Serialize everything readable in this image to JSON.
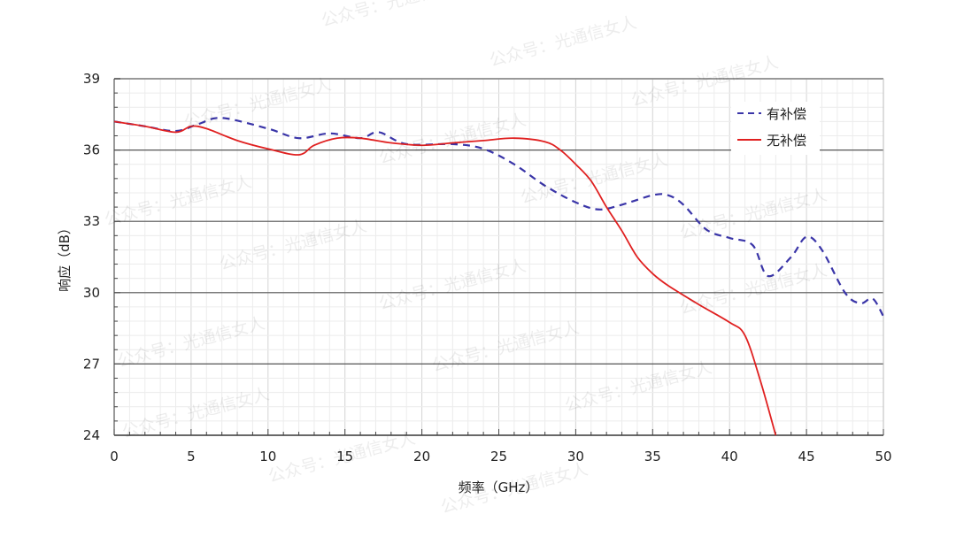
{
  "chart_data": {
    "type": "line",
    "title": "",
    "xlabel": "频率（GHz）",
    "ylabel": "响应（dB）",
    "xlim": [
      0,
      50
    ],
    "ylim": [
      24,
      39
    ],
    "xticks": [
      0,
      5,
      10,
      15,
      20,
      25,
      30,
      35,
      40,
      45,
      50
    ],
    "yticks": [
      24,
      27,
      30,
      33,
      36,
      39
    ],
    "grid": true,
    "legend_position": "top-right",
    "series": [
      {
        "name": "有补偿",
        "color": "#3a35a8",
        "style": "dashed",
        "x": [
          0,
          2,
          4,
          5.5,
          7,
          10,
          12,
          14,
          16,
          17.2,
          19,
          22,
          24,
          26,
          28,
          30,
          31.5,
          33,
          35,
          36,
          37,
          38.5,
          40,
          41.5,
          42.5,
          44,
          45,
          46,
          47.5,
          48.5,
          49.3,
          50
        ],
        "y": [
          37.2,
          37.0,
          36.8,
          37.1,
          37.35,
          36.9,
          36.5,
          36.7,
          36.5,
          36.75,
          36.25,
          36.25,
          36.05,
          35.4,
          34.5,
          33.8,
          33.5,
          33.7,
          34.1,
          34.1,
          33.7,
          32.65,
          32.3,
          32.0,
          30.7,
          31.5,
          32.35,
          31.8,
          30.0,
          29.55,
          29.75,
          29.0
        ]
      },
      {
        "name": "无补偿",
        "color": "#e02020",
        "style": "solid",
        "x": [
          0,
          2,
          4,
          5,
          6,
          8,
          10,
          12,
          13,
          14.5,
          16,
          18,
          20,
          22,
          24,
          26,
          28,
          29,
          30,
          31,
          32,
          33,
          34,
          35,
          36,
          38,
          40,
          41,
          42,
          43
        ],
        "y": [
          37.2,
          37.0,
          36.75,
          37.0,
          36.9,
          36.4,
          36.05,
          35.8,
          36.2,
          36.5,
          36.5,
          36.3,
          36.2,
          36.3,
          36.4,
          36.5,
          36.35,
          36.0,
          35.4,
          34.7,
          33.6,
          32.6,
          31.5,
          30.8,
          30.3,
          29.5,
          28.75,
          28.2,
          26.3,
          24.0
        ]
      }
    ]
  },
  "watermark": "公众号：光通信女人"
}
